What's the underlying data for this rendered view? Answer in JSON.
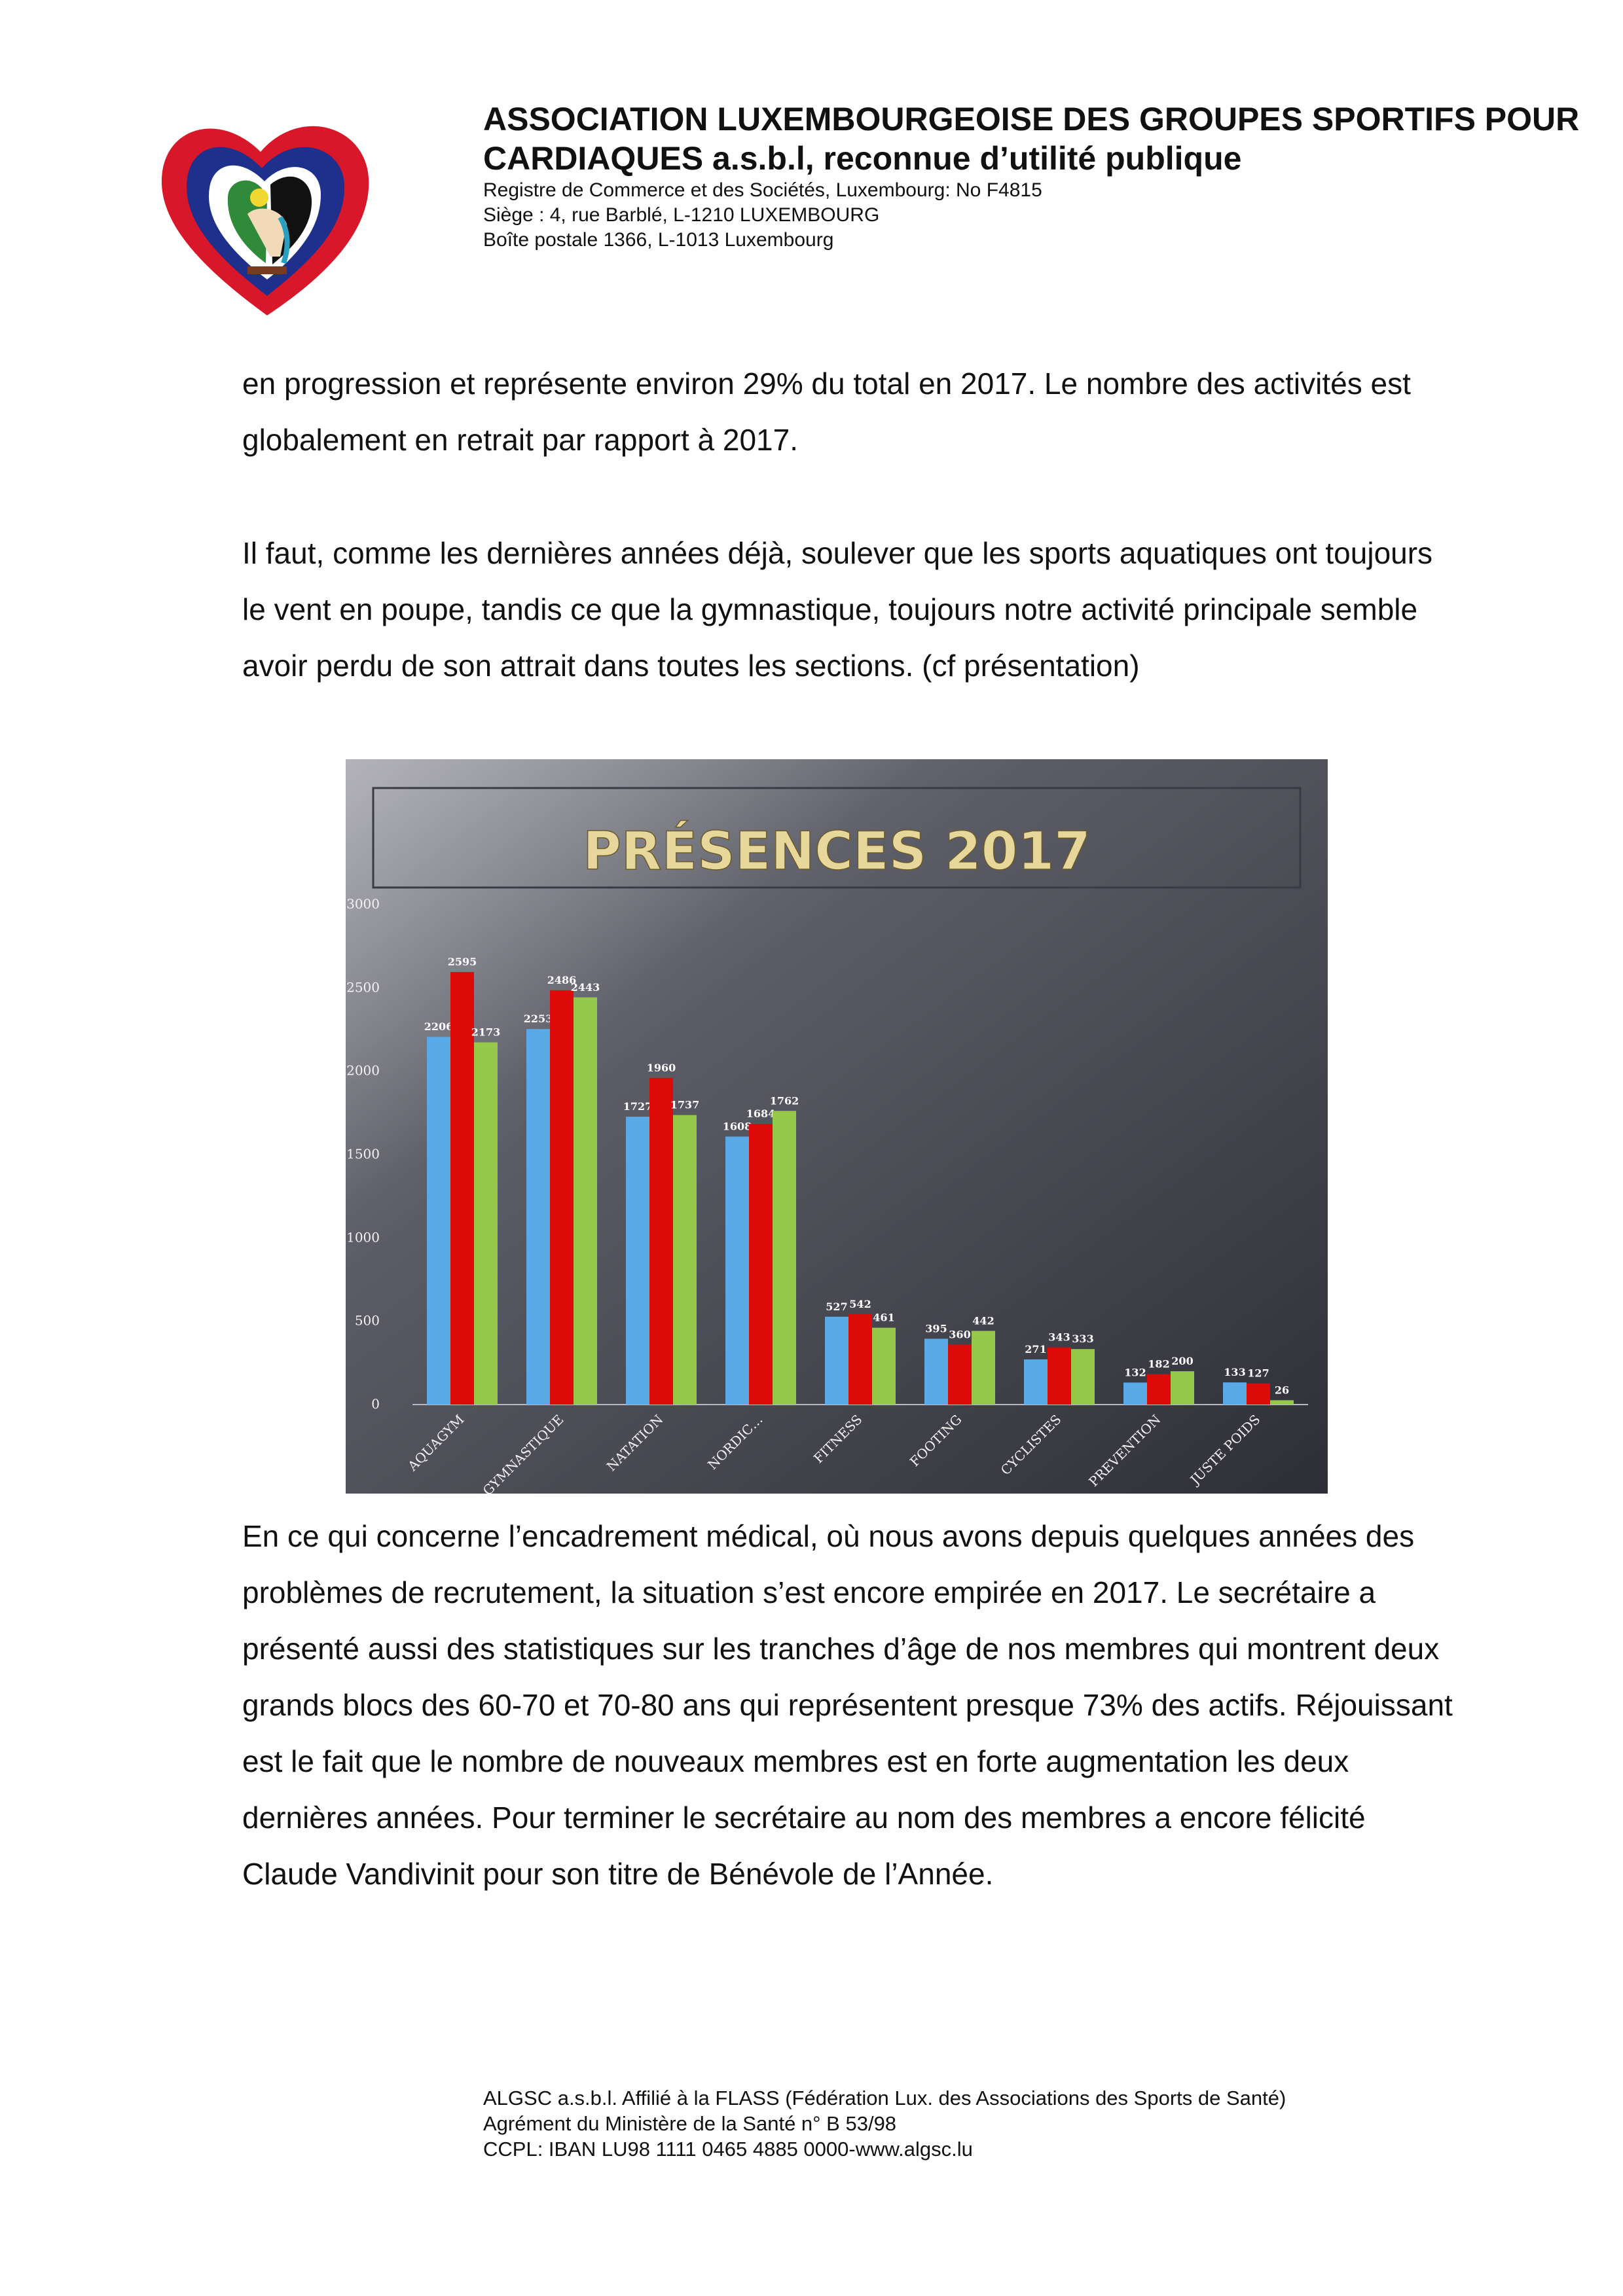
{
  "header": {
    "org_line1": "ASSOCIATION LUXEMBOURGEOISE DES GROUPES SPORTIFS POUR",
    "org_line2": "CARDIAQUES a.s.b.l, reconnue d’utilité publique",
    "registry": "Registre de Commerce et des Sociétés, Luxembourg: No F4815",
    "seat": "Siège : 4, rue Barblé,  L-1210 LUXEMBOURG",
    "po_box": "Boîte postale 1366, L-1013 Luxembourg"
  },
  "body": {
    "para1": "en progression et représente environ 29% du total en 2017. Le nombre des activités est globalement en retrait par rapport à 2017.",
    "para2": "Il faut, comme les dernières années déjà, soulever que les sports aquatiques ont toujours le vent en poupe, tandis ce que la gymnastique, toujours notre activité principale semble avoir perdu de son attrait dans toutes les sections. (cf présentation)",
    "para3": "En ce qui concerne l’encadrement médical, où nous avons depuis quelques années des problèmes de recrutement, la situation s’est encore empirée en 2017. Le secrétaire a présenté aussi des statistiques sur les tranches d’âge de nos membres qui montrent deux grands blocs des 60-70 et 70-80 ans qui représentent presque 73% des actifs. Réjouissant est le fait que le nombre de nouveaux membres est en forte augmentation les deux dernières années. Pour terminer le secrétaire au nom des membres a encore félicité Claude Vandivinit pour son titre de Bénévole de l’Année."
  },
  "chart_data": {
    "type": "bar",
    "title": "PRÉSENCES 2017",
    "categories": [
      "AQUAGYM",
      "GYMNASTIQUE",
      "NATATION",
      "NORDIC…",
      "FITNESS",
      "FOOTING",
      "CYCLISTES",
      "PREVENTION",
      "JUSTE POIDS"
    ],
    "series": [
      {
        "values": [
          2206,
          2253,
          1727,
          1608,
          527,
          395,
          271,
          132,
          133
        ],
        "color": "#5aaae8"
      },
      {
        "values": [
          2595,
          2486,
          1960,
          1684,
          542,
          360,
          343,
          182,
          127
        ],
        "color": "#dd0a0a"
      },
      {
        "values": [
          2173,
          2443,
          1737,
          1762,
          461,
          442,
          333,
          200,
          26
        ],
        "color": "#96c84a"
      }
    ],
    "ylim": [
      0,
      3000
    ],
    "yticks": [
      "3000",
      "2500",
      "2000",
      "1500",
      "1000",
      "500",
      "0"
    ],
    "grid": false,
    "legend": "none"
  },
  "footer": {
    "line1": "ALGSC a.s.b.l. Affilié à la FLASS (Fédération Lux. des Associations des Sports de Santé)",
    "line2": "Agrément du Ministère de la Santé n° B 53/98",
    "line3": "CCPL: IBAN LU98 1111 0465 4885 0000-www.algsc.lu"
  },
  "colors": {
    "chart_bg_light": "#8a8a94",
    "chart_bg_dark": "#2e2e36",
    "chart_title": "#e8d79a",
    "logo_red": "#d8182a",
    "logo_blue": "#1f2f8c"
  }
}
